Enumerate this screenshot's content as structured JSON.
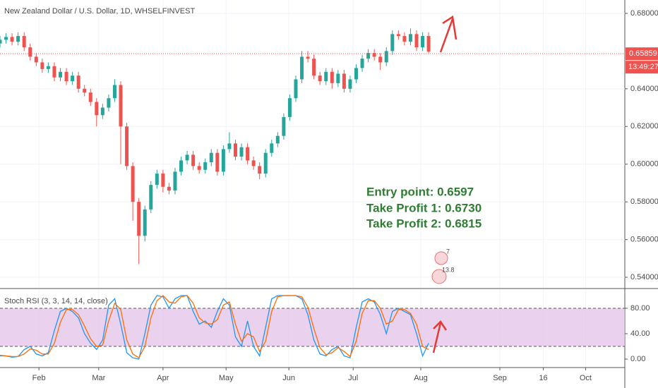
{
  "chart_data": [
    {
      "type": "candlestick",
      "title": "New Zealand Dollar / U.S. Dollar, 1D, WHSELFINVEST",
      "x": [
        0,
        2,
        4,
        6,
        8,
        10,
        12,
        14,
        16,
        18,
        20,
        22,
        24,
        26,
        28,
        30,
        32,
        34,
        36,
        38,
        40,
        42,
        44,
        46,
        48,
        50,
        52,
        54,
        56,
        58,
        60,
        62,
        64,
        66,
        68,
        70,
        72,
        74,
        76,
        78,
        80,
        82,
        84,
        86,
        88,
        90,
        92,
        94,
        96,
        98,
        100,
        102,
        104,
        106,
        108,
        110,
        112,
        114,
        116,
        118,
        120,
        122,
        124,
        126,
        128,
        130,
        132,
        134,
        136,
        138,
        140,
        142
      ],
      "open": [
        0.664,
        0.666,
        0.6675,
        0.665,
        0.668,
        0.662,
        0.657,
        0.654,
        0.6505,
        0.652,
        0.646,
        0.649,
        0.644,
        0.647,
        0.64,
        0.638,
        0.633,
        0.626,
        0.63,
        0.635,
        0.642,
        0.62,
        0.599,
        0.58,
        0.562,
        0.576,
        0.589,
        0.595,
        0.588,
        0.586,
        0.596,
        0.602,
        0.605,
        0.599,
        0.597,
        0.601,
        0.606,
        0.596,
        0.608,
        0.611,
        0.604,
        0.609,
        0.602,
        0.599,
        0.595,
        0.606,
        0.611,
        0.615,
        0.625,
        0.635,
        0.645,
        0.657,
        0.656,
        0.647,
        0.644,
        0.649,
        0.643,
        0.648,
        0.64,
        0.645,
        0.651,
        0.656,
        0.659,
        0.657,
        0.654,
        0.66,
        0.669,
        0.668,
        0.665,
        0.669,
        0.662,
        0.668
      ],
      "close": [
        0.666,
        0.6675,
        0.665,
        0.668,
        0.662,
        0.657,
        0.654,
        0.6505,
        0.652,
        0.646,
        0.649,
        0.644,
        0.647,
        0.64,
        0.638,
        0.633,
        0.626,
        0.63,
        0.635,
        0.642,
        0.62,
        0.599,
        0.58,
        0.562,
        0.576,
        0.589,
        0.595,
        0.588,
        0.586,
        0.596,
        0.602,
        0.605,
        0.599,
        0.597,
        0.601,
        0.606,
        0.596,
        0.608,
        0.611,
        0.604,
        0.609,
        0.602,
        0.599,
        0.595,
        0.606,
        0.611,
        0.615,
        0.625,
        0.635,
        0.645,
        0.657,
        0.656,
        0.647,
        0.644,
        0.649,
        0.643,
        0.648,
        0.64,
        0.645,
        0.651,
        0.656,
        0.659,
        0.657,
        0.654,
        0.66,
        0.669,
        0.668,
        0.665,
        0.669,
        0.662,
        0.668,
        0.6597
      ],
      "high": [
        0.668,
        0.6695,
        0.6695,
        0.67,
        0.67,
        0.664,
        0.659,
        0.656,
        0.654,
        0.654,
        0.651,
        0.651,
        0.649,
        0.649,
        0.642,
        0.64,
        0.635,
        0.632,
        0.637,
        0.645,
        0.644,
        0.622,
        0.601,
        0.582,
        0.578,
        0.591,
        0.597,
        0.597,
        0.59,
        0.598,
        0.604,
        0.607,
        0.607,
        0.601,
        0.603,
        0.608,
        0.608,
        0.61,
        0.617,
        0.613,
        0.611,
        0.611,
        0.604,
        0.601,
        0.608,
        0.613,
        0.617,
        0.627,
        0.637,
        0.647,
        0.66,
        0.66,
        0.658,
        0.649,
        0.651,
        0.651,
        0.65,
        0.65,
        0.647,
        0.653,
        0.658,
        0.661,
        0.661,
        0.659,
        0.662,
        0.671,
        0.671,
        0.67,
        0.672,
        0.671,
        0.67,
        0.67
      ],
      "low": [
        0.662,
        0.664,
        0.663,
        0.663,
        0.66,
        0.655,
        0.652,
        0.6485,
        0.6485,
        0.644,
        0.644,
        0.642,
        0.642,
        0.638,
        0.636,
        0.631,
        0.62,
        0.624,
        0.628,
        0.633,
        0.6,
        0.597,
        0.57,
        0.547,
        0.559,
        0.574,
        0.587,
        0.585,
        0.584,
        0.584,
        0.594,
        0.6,
        0.597,
        0.595,
        0.595,
        0.599,
        0.594,
        0.594,
        0.606,
        0.602,
        0.602,
        0.6,
        0.597,
        0.592,
        0.593,
        0.604,
        0.609,
        0.613,
        0.623,
        0.633,
        0.643,
        0.654,
        0.645,
        0.642,
        0.642,
        0.64,
        0.641,
        0.638,
        0.638,
        0.643,
        0.649,
        0.654,
        0.655,
        0.65,
        0.652,
        0.658,
        0.666,
        0.663,
        0.663,
        0.66,
        0.66,
        0.659
      ],
      "up_color": "#26a69a",
      "down_color": "#ef5350",
      "xlim": [
        0,
        207
      ],
      "ylim": [
        0.5344,
        0.6871
      ],
      "yticks": [
        {
          "value": 0.68,
          "label": "0.68000"
        },
        {
          "value": 0.64,
          "label": "0.64000"
        },
        {
          "value": 0.62,
          "label": "0.62000"
        },
        {
          "value": 0.6,
          "label": "0.60000"
        },
        {
          "value": 0.58,
          "label": "0.58000"
        },
        {
          "value": 0.56,
          "label": "0.56000"
        },
        {
          "value": 0.54,
          "label": "0.54000"
        }
      ],
      "grid": true,
      "last_price": {
        "value": 0.65859,
        "label": "0.65859"
      },
      "countdown": "13:49:27",
      "annotations": [
        "Entry point: 0.6597",
        "Take Profit 1: 0.6730",
        "Take Profit 2: 0.6815"
      ],
      "events": [
        "7",
        "13.8"
      ]
    },
    {
      "type": "line",
      "title": "Stoch RSI (3, 3, 14, 14, close)",
      "x": [
        0,
        2,
        4,
        6,
        8,
        10,
        12,
        14,
        16,
        18,
        20,
        22,
        24,
        26,
        28,
        30,
        32,
        34,
        36,
        38,
        40,
        42,
        44,
        46,
        48,
        50,
        52,
        54,
        56,
        58,
        60,
        62,
        64,
        66,
        68,
        70,
        72,
        74,
        76,
        78,
        80,
        82,
        84,
        86,
        88,
        90,
        92,
        94,
        96,
        98,
        100,
        102,
        104,
        106,
        108,
        110,
        112,
        114,
        116,
        118,
        120,
        122,
        124,
        126,
        128,
        130,
        132,
        134,
        136,
        138,
        140,
        142
      ],
      "series": [
        {
          "color": "#2196f3",
          "values": [
            5,
            5,
            3,
            4,
            15,
            20,
            8,
            5,
            10,
            45,
            75,
            80,
            75,
            65,
            40,
            25,
            15,
            30,
            85,
            95,
            55,
            10,
            2,
            0,
            40,
            85,
            100,
            98,
            80,
            95,
            100,
            100,
            75,
            55,
            60,
            50,
            75,
            95,
            85,
            35,
            20,
            60,
            20,
            5,
            50,
            95,
            100,
            100,
            100,
            100,
            95,
            70,
            30,
            8,
            5,
            15,
            20,
            5,
            2,
            50,
            90,
            95,
            90,
            70,
            40,
            75,
            80,
            75,
            70,
            40,
            5,
            25
          ]
        },
        {
          "color": "#ff6d00",
          "values": [
            6,
            5,
            4,
            4,
            8,
            16,
            14,
            8,
            8,
            25,
            58,
            78,
            78,
            70,
            52,
            32,
            20,
            22,
            60,
            88,
            78,
            30,
            8,
            2,
            20,
            65,
            92,
            100,
            90,
            88,
            98,
            100,
            88,
            65,
            57,
            55,
            62,
            85,
            90,
            55,
            28,
            40,
            35,
            12,
            28,
            75,
            98,
            100,
            100,
            100,
            98,
            82,
            48,
            18,
            7,
            10,
            18,
            12,
            4,
            28,
            72,
            92,
            92,
            80,
            55,
            60,
            78,
            78,
            72,
            55,
            20,
            15
          ]
        }
      ],
      "bands": [
        20,
        80
      ],
      "band_color": "#e1bee7",
      "xlim": [
        0,
        207
      ],
      "ylim": [
        -12.2,
        110
      ],
      "yticks": [
        {
          "value": 80,
          "label": "80.00"
        },
        {
          "value": 40,
          "label": "40.00"
        },
        {
          "value": 0,
          "label": "0.00"
        }
      ],
      "xticks": [
        {
          "value": 12.9,
          "label": "Feb"
        },
        {
          "value": 32.7,
          "label": "Mar"
        },
        {
          "value": 54,
          "label": "Apr"
        },
        {
          "value": 74.9,
          "label": "May"
        },
        {
          "value": 95.7,
          "label": "Jun"
        },
        {
          "value": 117,
          "label": "Jul"
        },
        {
          "value": 139.4,
          "label": "Aug"
        },
        {
          "value": 165.6,
          "label": "Sep"
        },
        {
          "value": 180,
          "label": "16"
        },
        {
          "value": 194,
          "label": "Oct"
        }
      ]
    }
  ]
}
